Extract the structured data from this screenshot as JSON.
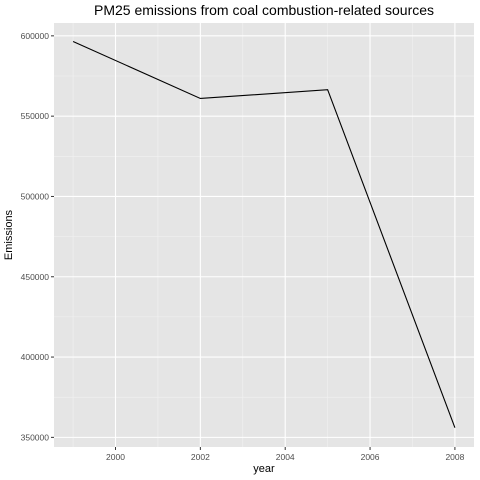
{
  "chart_data": {
    "type": "line",
    "title": "PM25 emissions from coal combustion-related sources",
    "xlabel": "year",
    "ylabel": "Emissions",
    "x": [
      1999,
      2002,
      2005,
      2008
    ],
    "series": [
      {
        "values": [
          596500,
          561000,
          566500,
          356000
        ]
      }
    ],
    "xlim": [
      1998.55,
      2008.45
    ],
    "ylim": [
      344000,
      608000
    ],
    "x_ticks": [
      2000,
      2002,
      2004,
      2006,
      2008
    ],
    "x_tick_labels": [
      "2000",
      "2002",
      "2004",
      "2006",
      "2008"
    ],
    "y_ticks": [
      350000,
      400000,
      450000,
      500000,
      550000,
      600000
    ],
    "y_tick_labels": [
      "350000",
      "400000",
      "450000",
      "500000",
      "550000",
      "600000"
    ],
    "grid": true,
    "legend": "none",
    "colors": {
      "panel": "#e5e5e5",
      "grid": "#ffffff",
      "line": "#000000"
    }
  }
}
